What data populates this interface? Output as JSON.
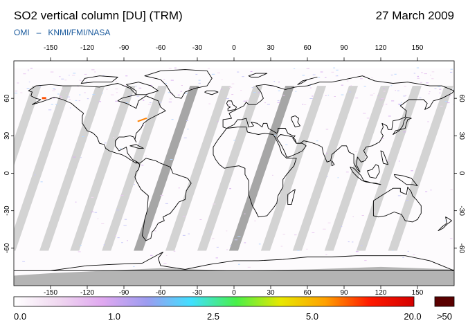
{
  "header": {
    "title": "SO2 vertical column [DU] (TRM)",
    "date": "27 March 2009",
    "instrument": "OMI",
    "separator": "–",
    "agencies": "KNMI/FMI/NASA"
  },
  "map": {
    "projection": "plate-carree",
    "lon_range": [
      -180,
      180
    ],
    "lat_range": [
      -90,
      90
    ],
    "lon_ticks": [
      -150,
      -120,
      -90,
      -60,
      -30,
      0,
      30,
      60,
      90,
      120,
      150
    ],
    "lat_ticks": [
      60,
      30,
      0,
      -30,
      -60
    ],
    "no_data_color": "#d3d3d3",
    "overlap_color": "#a6a6a6",
    "polar_night_color": "#b4b4b4",
    "coastline_color": "#000000"
  },
  "colorbar": {
    "tick_labels": [
      "0.0",
      "1.0",
      "2.5",
      "5.0",
      "20.0"
    ],
    "overflow_label": ">50",
    "gradient_stops": [
      "#ffffff",
      "#f0d8f0",
      "#e0a8f0",
      "#9c9cf0",
      "#40e0ff",
      "#48f048",
      "#e8e800",
      "#ffa000",
      "#ff1a00",
      "#d40000"
    ],
    "overflow_color": "#5a0000"
  }
}
